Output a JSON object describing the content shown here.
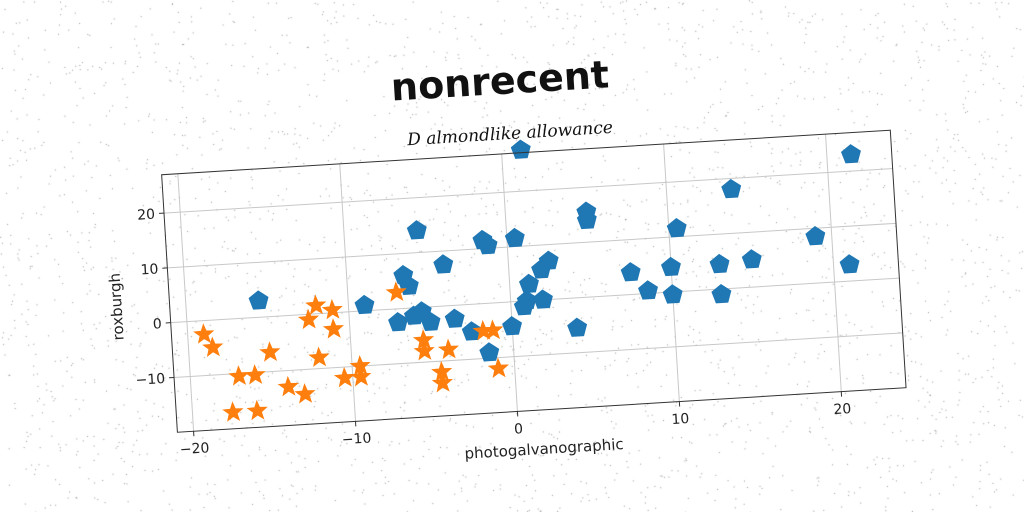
{
  "chart_data": {
    "type": "scatter",
    "title": "nonrecent",
    "subtitle": "D almondlike allowance",
    "xlabel": "photogalvanographic",
    "ylabel": "roxburgh",
    "xlim": [
      -21,
      24
    ],
    "ylim": [
      -20,
      27
    ],
    "xticks": [
      -20,
      -10,
      0,
      10,
      20
    ],
    "yticks": [
      -10,
      0,
      10,
      20
    ],
    "xtick_labels": [
      "−20",
      "−10",
      "0",
      "10",
      "20"
    ],
    "ytick_labels": [
      "−10",
      "0",
      "10",
      "20"
    ],
    "grid": true,
    "colors": {
      "series_a": "#1f77b4",
      "series_b": "#ff7f0e"
    },
    "series": [
      {
        "marker": "pentagon",
        "color": "#1f77b4",
        "points": [
          [
            1.2,
            27.5
          ],
          [
            21.5,
            23
          ],
          [
            14,
            18
          ],
          [
            5,
            15.5
          ],
          [
            5,
            14
          ],
          [
            -5.5,
            14
          ],
          [
            -1.5,
            11.5
          ],
          [
            -1.2,
            10.5
          ],
          [
            0.5,
            11.5
          ],
          [
            10.5,
            11.5
          ],
          [
            19,
            8.5
          ],
          [
            -4,
            7.5
          ],
          [
            -6.5,
            6
          ],
          [
            -6.2,
            4
          ],
          [
            2.5,
            7
          ],
          [
            2,
            5.5
          ],
          [
            1.2,
            3
          ],
          [
            7.5,
            4
          ],
          [
            10,
            4.5
          ],
          [
            13,
            4.5
          ],
          [
            15,
            5
          ],
          [
            21,
            3
          ],
          [
            -15.5,
            3
          ],
          [
            -9,
            1
          ],
          [
            8.5,
            0.5
          ],
          [
            10,
            -0.5
          ],
          [
            13,
            -1
          ],
          [
            1,
            0
          ],
          [
            0.8,
            -1
          ],
          [
            2,
            0
          ],
          [
            -6,
            -1.5
          ],
          [
            -5.5,
            -0.8
          ],
          [
            -7,
            -2.5
          ],
          [
            -5,
            -2.8
          ],
          [
            -3.5,
            -2.5
          ],
          [
            -2.5,
            -5
          ],
          [
            0,
            -4.5
          ],
          [
            4,
            -5.5
          ],
          [
            -1.5,
            -9
          ]
        ]
      },
      {
        "marker": "star",
        "color": "#ff7f0e",
        "points": [
          [
            -19,
            -2.5
          ],
          [
            -18.5,
            -5
          ],
          [
            -15,
            -6.5
          ],
          [
            -17,
            -10.5
          ],
          [
            -16,
            -10.5
          ],
          [
            -14,
            -13
          ],
          [
            -13,
            -14.5
          ],
          [
            -17.5,
            -17
          ],
          [
            -16,
            -17
          ],
          [
            -12.5,
            -1
          ],
          [
            -12,
            1.5
          ],
          [
            -11,
            0.5
          ],
          [
            -11,
            -3
          ],
          [
            -12,
            -8
          ],
          [
            -10.5,
            -12
          ],
          [
            -9.5,
            -12
          ],
          [
            -9.5,
            -10
          ],
          [
            -7,
            3
          ],
          [
            -5.5,
            -6
          ],
          [
            -5.5,
            -8
          ],
          [
            -4,
            -8
          ],
          [
            -4.5,
            -12
          ],
          [
            -4.5,
            -14
          ],
          [
            -1.8,
            -5
          ],
          [
            -1.2,
            -5
          ],
          [
            -1,
            -12
          ]
        ]
      }
    ]
  }
}
